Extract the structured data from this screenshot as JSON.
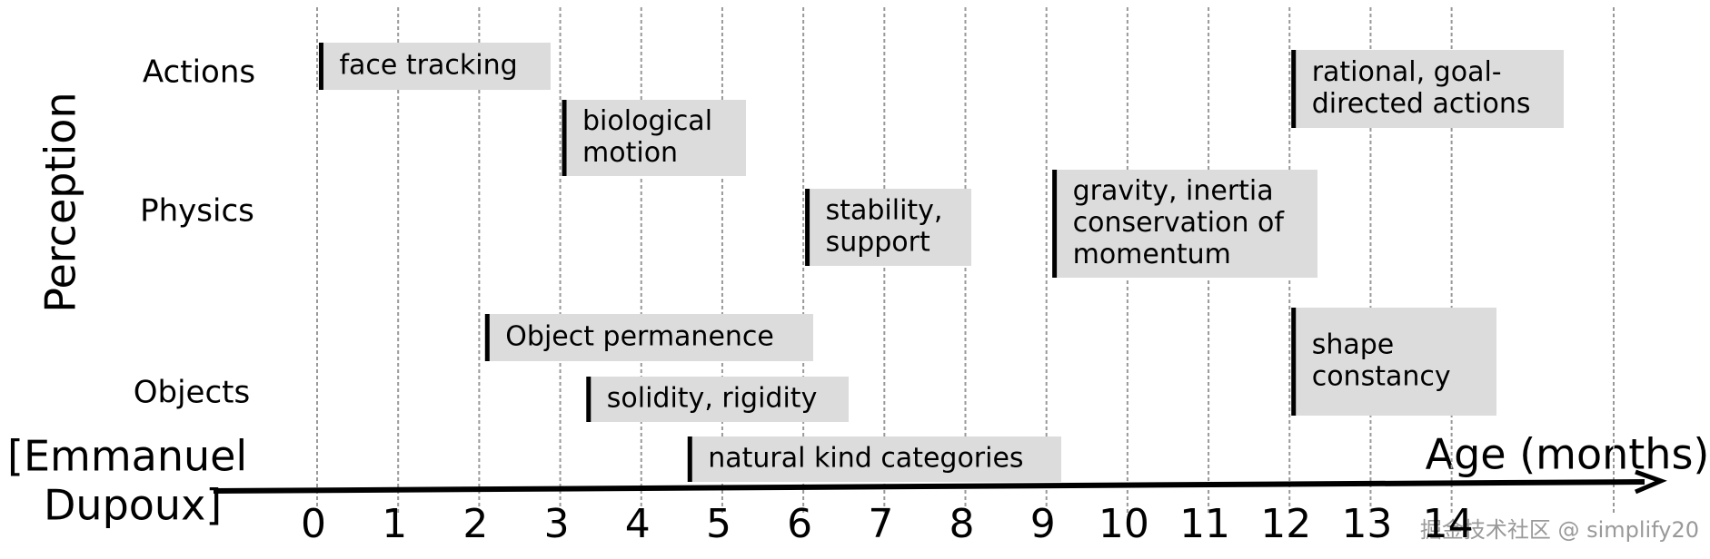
{
  "chart_data": {
    "type": "timeline",
    "y_label": "Perception",
    "x_label": "Age (months)",
    "annotation": [
      "[Emmanuel",
      "Dupoux]"
    ],
    "watermark": "掘金技术社区 @ simplify20",
    "categories": [
      "Actions",
      "Physics",
      "Objects"
    ],
    "xlim": [
      0,
      16
    ],
    "xticks": [
      0,
      1,
      2,
      3,
      4,
      5,
      6,
      7,
      8,
      9,
      10,
      11,
      12,
      13,
      14
    ],
    "grid": true,
    "color": "#dcdcdc",
    "events": [
      {
        "lines": [
          "face tracking"
        ],
        "category": "Actions",
        "start": 0.05
      },
      {
        "lines": [
          "biological",
          "motion"
        ],
        "category": "Actions",
        "start": 3.05
      },
      {
        "lines": [
          "rational, goal-",
          "directed actions"
        ],
        "category": "Actions",
        "start": 12.05
      },
      {
        "lines": [
          "stability,",
          "support"
        ],
        "category": "Physics",
        "start": 6.05
      },
      {
        "lines": [
          "gravity, inertia",
          "conservation of",
          "momentum"
        ],
        "category": "Physics",
        "start": 9.1
      },
      {
        "lines": [
          "Object permanence"
        ],
        "category": "Objects",
        "start": 2.1
      },
      {
        "lines": [
          "shape",
          "constancy"
        ],
        "category": "Objects",
        "start": 12.05
      },
      {
        "lines": [
          "solidity, rigidity"
        ],
        "category": "Objects",
        "start": 3.35
      },
      {
        "lines": [
          "natural kind categories"
        ],
        "category": "Objects",
        "start": 4.6
      }
    ]
  }
}
